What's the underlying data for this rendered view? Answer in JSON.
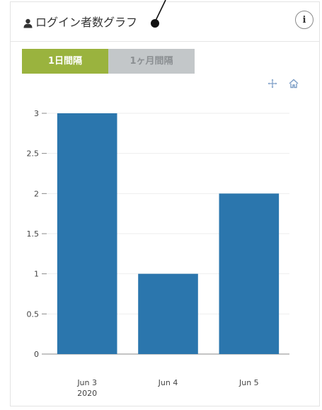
{
  "panel": {
    "title": "ログイン者数グラフ",
    "user_icon": "user-icon",
    "info_icon": "info-icon",
    "info_label": "i"
  },
  "tabs": [
    {
      "label": "1日間隔",
      "active": true
    },
    {
      "label": "1ヶ月間隔",
      "active": false
    }
  ],
  "toolbar": {
    "pan_icon": "move-icon",
    "home_icon": "home-icon"
  },
  "colors": {
    "bar": "#2b76ad",
    "active_tab": "#9ab33e",
    "inactive_tab": "#c3c7c9",
    "grid": "#eeeeee"
  },
  "chart_data": {
    "type": "bar",
    "categories": [
      "Jun 3",
      "Jun 4",
      "Jun 5"
    ],
    "x_sub_labels": [
      "2020",
      "",
      ""
    ],
    "values": [
      3,
      1,
      2
    ],
    "yticks": [
      0,
      0.5,
      1,
      1.5,
      2,
      2.5,
      3
    ],
    "ytick_labels": [
      "0",
      "0.5",
      "1",
      "1.5",
      "2",
      "2.5",
      "3"
    ],
    "ylim": [
      0,
      3
    ],
    "grid": true
  }
}
